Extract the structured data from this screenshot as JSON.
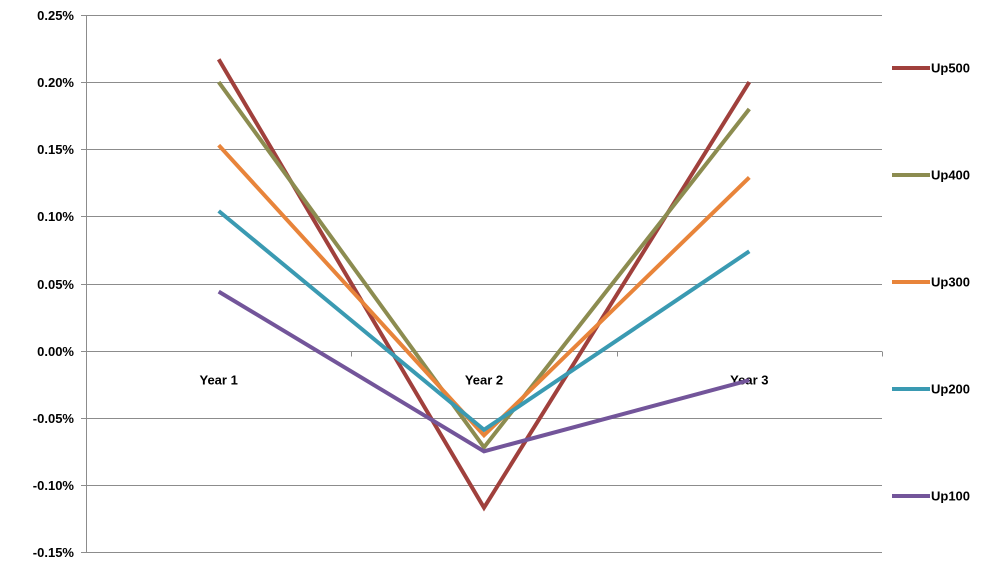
{
  "chart_data": {
    "type": "line",
    "categories": [
      "Year 1",
      "Year 2",
      "Year 3"
    ],
    "ylim": [
      -0.15,
      0.25
    ],
    "ytick_step": 0.05,
    "ytick_labels": [
      "0.25%",
      "0.20%",
      "0.15%",
      "0.10%",
      "0.05%",
      "0.00%",
      "-0.05%",
      "-0.10%",
      "-0.15%"
    ],
    "grid": true,
    "legend_position": "right",
    "series": [
      {
        "name": "Up500",
        "color": "#A0403C",
        "values": [
          0.217,
          -0.117,
          0.2
        ]
      },
      {
        "name": "Up400",
        "color": "#8C8C50",
        "values": [
          0.2,
          -0.072,
          0.18
        ]
      },
      {
        "name": "Up300",
        "color": "#E8843A",
        "values": [
          0.153,
          -0.063,
          0.129
        ]
      },
      {
        "name": "Up200",
        "color": "#3A9AB2",
        "values": [
          0.104,
          -0.059,
          0.074
        ]
      },
      {
        "name": "Up100",
        "color": "#73559A",
        "values": [
          0.044,
          -0.075,
          -0.022
        ]
      }
    ]
  }
}
